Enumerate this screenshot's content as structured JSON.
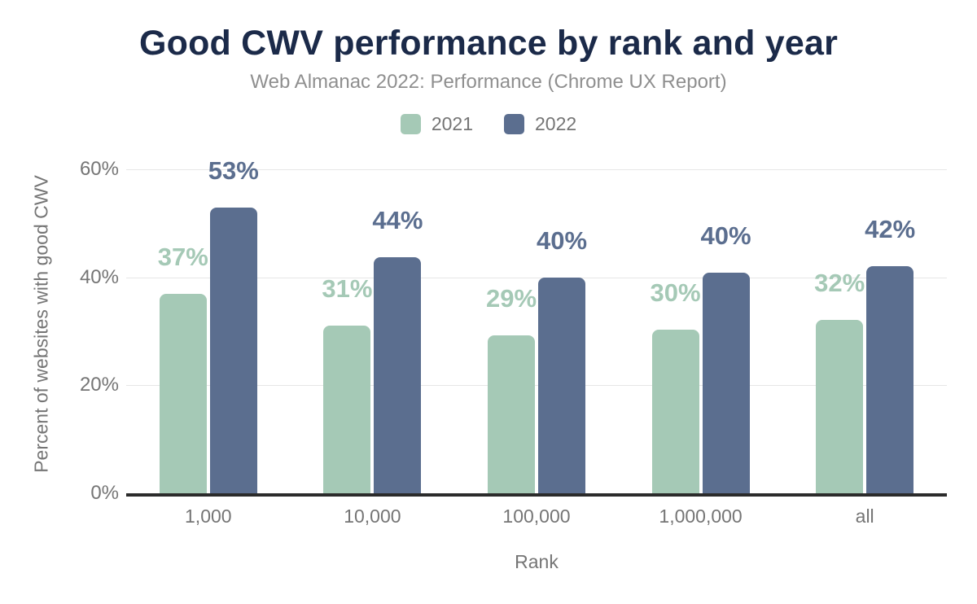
{
  "chart": {
    "title": "Good CWV performance by rank and year",
    "subtitle": "Web Almanac 2022: Performance (Chrome UX Report)"
  },
  "colors": {
    "title": "#1b2a49",
    "subtitle": "#8f8f8f",
    "axis_text": "#757575",
    "gridline": "#e6e6e6",
    "axis_line": "#2b2b2b",
    "series_2021": "#a5c9b6",
    "series_2022": "#5b6e8f"
  },
  "chart_data": {
    "type": "bar",
    "title": "Good CWV performance by rank and year",
    "subtitle": "Web Almanac 2022: Performance (Chrome UX Report)",
    "xlabel": "Rank",
    "ylabel": "Percent of websites with good CWV",
    "categories": [
      "1,000",
      "10,000",
      "100,000",
      "1,000,000",
      "all"
    ],
    "series": [
      {
        "name": "2021",
        "color": "#a5c9b6",
        "values": [
          37,
          31,
          29,
          30,
          32
        ],
        "labels": [
          "37%",
          "31%",
          "29%",
          "30%",
          "32%"
        ],
        "render_heights_pct": [
          37,
          31,
          29.3,
          30.3,
          32.2
        ]
      },
      {
        "name": "2022",
        "color": "#5b6e8f",
        "values": [
          53,
          44,
          40,
          40,
          42
        ],
        "labels": [
          "53%",
          "44%",
          "40%",
          "40%",
          "42%"
        ],
        "render_heights_pct": [
          53,
          43.7,
          40,
          40.8,
          42.1
        ]
      }
    ],
    "y_ticks": [
      "0%",
      "20%",
      "40%",
      "60%"
    ],
    "ylim": [
      0,
      65
    ],
    "grid": "horizontal",
    "legend_position": "top"
  }
}
